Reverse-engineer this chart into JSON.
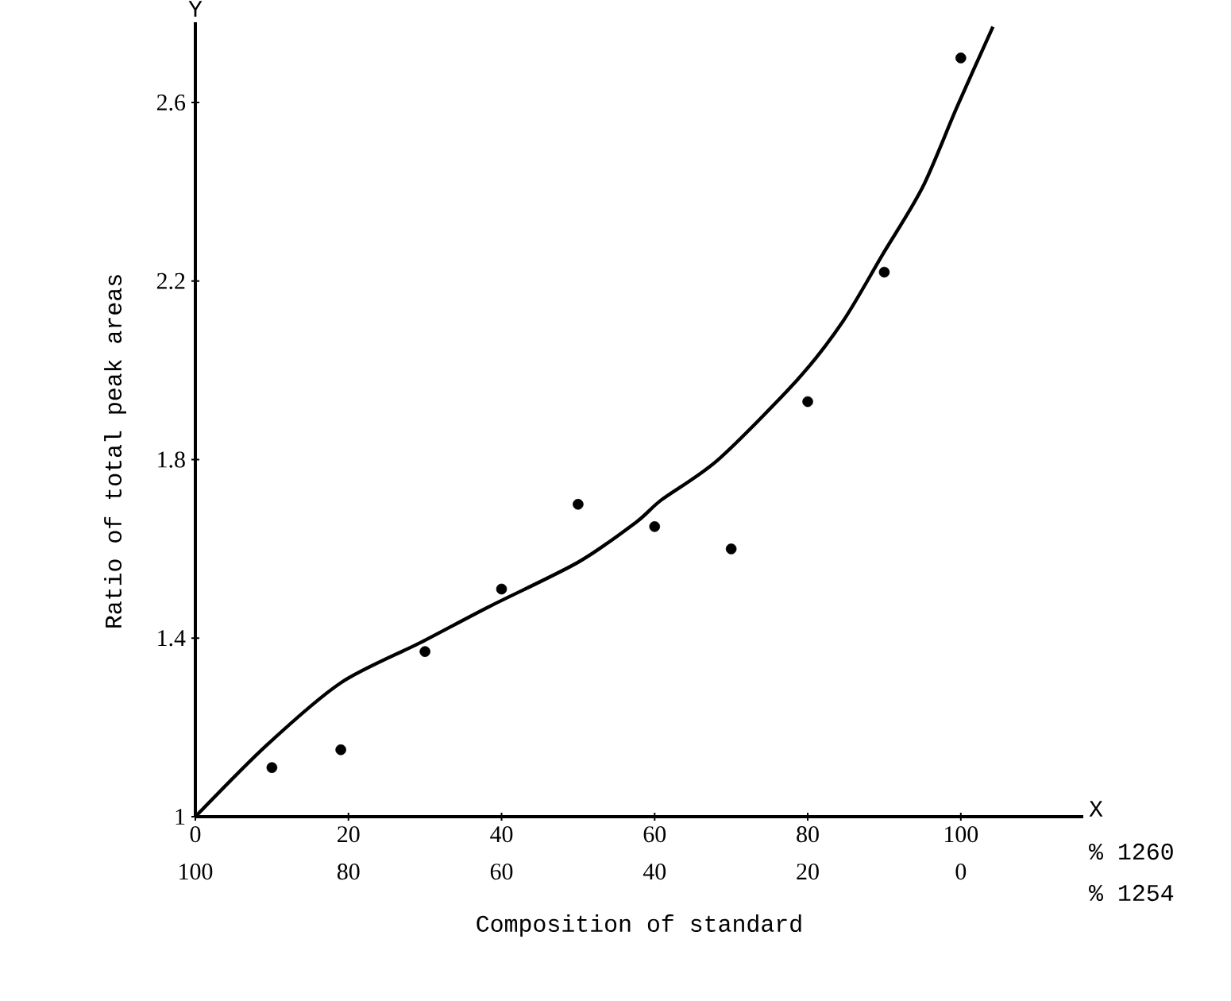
{
  "chart_data": {
    "type": "scatter",
    "xlabel": "Composition of standard",
    "ylabel": "Ratio of total peak areas",
    "xlim": [
      0,
      116
    ],
    "ylim": [
      1,
      2.78
    ],
    "xticks": [
      0,
      20,
      40,
      60,
      80,
      100
    ],
    "yticks": [
      1,
      1.4,
      1.8,
      2.2,
      2.6
    ],
    "x2lim": [
      100,
      -16
    ],
    "x2ticks": [
      100,
      80,
      60,
      40,
      20,
      0
    ],
    "annotations": [
      "Y",
      "X",
      "% 1260",
      "% 1254"
    ],
    "marker": "circle",
    "series": [
      {
        "color": "#000000",
        "x": [
          10,
          19,
          30,
          40,
          50,
          60,
          70,
          80,
          90,
          100
        ],
        "values": [
          1.11,
          1.15,
          1.37,
          1.51,
          1.7,
          1.65,
          1.6,
          1.93,
          2.22,
          2.7
        ]
      },
      {
        "type": "line",
        "color": "#000000",
        "marker": "none",
        "line_style": "solid",
        "x": [
          0,
          9.3,
          19,
          29.4,
          38.3,
          50,
          57.6,
          60.9,
          68.3,
          78.7,
          84.6,
          89.8,
          95,
          99.5,
          104.2
        ],
        "values": [
          1.0,
          1.16,
          1.3,
          1.39,
          1.47,
          1.57,
          1.66,
          1.71,
          1.8,
          1.98,
          2.11,
          2.26,
          2.41,
          2.59,
          2.77
        ]
      }
    ]
  }
}
